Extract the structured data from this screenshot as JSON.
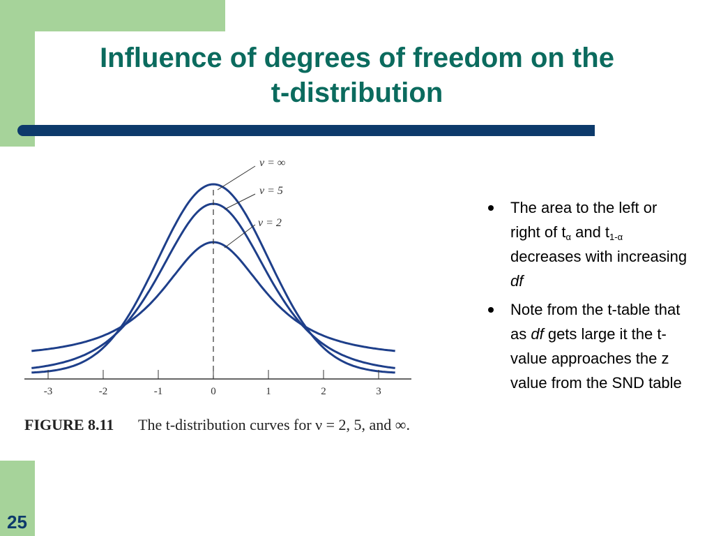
{
  "header": {
    "title_lines": [
      "Influence of degrees of freedom on the",
      "t-distribution"
    ]
  },
  "figure": {
    "curve_labels": [
      "ν = ∞",
      "ν = 5",
      "ν = 2"
    ],
    "xticks": [
      -3,
      -2,
      -1,
      0,
      1,
      2,
      3
    ],
    "caption": {
      "label": "FIGURE 8.11",
      "text": "The t-distribution curves for ν = 2, 5, and ∞."
    }
  },
  "bullets": [
    {
      "segments": [
        {
          "text": "The area to the left or right of t"
        },
        {
          "text": "α",
          "style": "sub"
        },
        {
          "text": " and t"
        },
        {
          "text": "1-α",
          "style": "sub"
        },
        {
          "text": " decreases with increasing "
        },
        {
          "text": "df",
          "style": "italic"
        }
      ]
    },
    {
      "segments": [
        {
          "text": "Note from the  t-table that as "
        },
        {
          "text": "df",
          "style": "italic"
        },
        {
          "text": " gets large it the t-value approaches the z value from the SND table"
        }
      ]
    }
  ],
  "footer": {
    "page_number": "25"
  }
}
